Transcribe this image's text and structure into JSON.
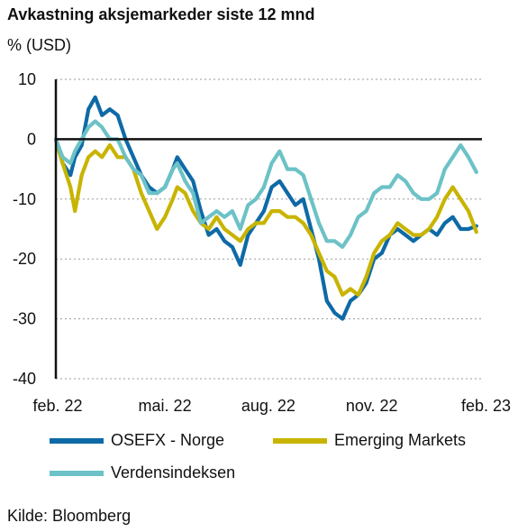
{
  "chart_data": {
    "type": "line",
    "title": "Avkastning aksjemarkeder siste 12 mnd",
    "ylabel": "% (USD)",
    "ylim": [
      -40,
      10
    ],
    "yticks": [
      10,
      0,
      -10,
      -20,
      -30,
      -40
    ],
    "xlim": [
      "2022-02-01",
      "2023-02-15"
    ],
    "xticks": [
      {
        "date": "2022-02-01",
        "label": "feb. 22"
      },
      {
        "date": "2022-05-01",
        "label": "mai. 22"
      },
      {
        "date": "2022-08-01",
        "label": "aug. 22"
      },
      {
        "date": "2022-11-01",
        "label": "nov. 22"
      },
      {
        "date": "2023-02-01",
        "label": "feb. 23"
      }
    ],
    "grid": "horizontal-dotted",
    "legend": "bottom",
    "series": [
      {
        "name": "OSEFX - Norge",
        "color": "#0e6aa6",
        "points": [
          [
            "2022-02-01",
            0
          ],
          [
            "2022-02-07",
            -4
          ],
          [
            "2022-02-14",
            -6
          ],
          [
            "2022-02-18",
            -3
          ],
          [
            "2022-02-24",
            -1
          ],
          [
            "2022-03-02",
            5
          ],
          [
            "2022-03-08",
            7
          ],
          [
            "2022-03-14",
            4
          ],
          [
            "2022-03-21",
            5
          ],
          [
            "2022-03-28",
            4
          ],
          [
            "2022-04-04",
            0
          ],
          [
            "2022-04-11",
            -3
          ],
          [
            "2022-04-18",
            -6
          ],
          [
            "2022-04-25",
            -8
          ],
          [
            "2022-05-02",
            -9
          ],
          [
            "2022-05-09",
            -8
          ],
          [
            "2022-05-16",
            -5
          ],
          [
            "2022-05-20",
            -3
          ],
          [
            "2022-05-27",
            -5
          ],
          [
            "2022-06-03",
            -7
          ],
          [
            "2022-06-10",
            -12
          ],
          [
            "2022-06-17",
            -16
          ],
          [
            "2022-06-24",
            -15
          ],
          [
            "2022-07-01",
            -17
          ],
          [
            "2022-07-08",
            -18
          ],
          [
            "2022-07-15",
            -21
          ],
          [
            "2022-07-22",
            -16
          ],
          [
            "2022-07-29",
            -14
          ],
          [
            "2022-08-05",
            -12
          ],
          [
            "2022-08-12",
            -8
          ],
          [
            "2022-08-19",
            -7
          ],
          [
            "2022-08-26",
            -9
          ],
          [
            "2022-09-02",
            -11
          ],
          [
            "2022-09-09",
            -10
          ],
          [
            "2022-09-16",
            -15
          ],
          [
            "2022-09-23",
            -20
          ],
          [
            "2022-09-30",
            -27
          ],
          [
            "2022-10-07",
            -29
          ],
          [
            "2022-10-14",
            -30
          ],
          [
            "2022-10-21",
            -27
          ],
          [
            "2022-10-28",
            -26
          ],
          [
            "2022-11-04",
            -24
          ],
          [
            "2022-11-11",
            -20
          ],
          [
            "2022-11-18",
            -19
          ],
          [
            "2022-11-25",
            -16
          ],
          [
            "2022-12-02",
            -15
          ],
          [
            "2022-12-09",
            -16
          ],
          [
            "2022-12-16",
            -17
          ],
          [
            "2022-12-23",
            -16
          ],
          [
            "2022-12-30",
            -15
          ],
          [
            "2023-01-06",
            -16
          ],
          [
            "2023-01-13",
            -14
          ],
          [
            "2023-01-20",
            -13
          ],
          [
            "2023-01-27",
            -15
          ],
          [
            "2023-02-03",
            -15
          ],
          [
            "2023-02-10",
            -14.5
          ]
        ]
      },
      {
        "name": "Emerging Markets",
        "color": "#c8b400",
        "points": [
          [
            "2022-02-01",
            0
          ],
          [
            "2022-02-07",
            -4
          ],
          [
            "2022-02-14",
            -8
          ],
          [
            "2022-02-18",
            -12
          ],
          [
            "2022-02-24",
            -6
          ],
          [
            "2022-03-02",
            -3
          ],
          [
            "2022-03-08",
            -2
          ],
          [
            "2022-03-14",
            -3
          ],
          [
            "2022-03-21",
            -1
          ],
          [
            "2022-03-28",
            -3
          ],
          [
            "2022-04-04",
            -3
          ],
          [
            "2022-04-11",
            -5
          ],
          [
            "2022-04-18",
            -9
          ],
          [
            "2022-04-25",
            -12
          ],
          [
            "2022-05-02",
            -15
          ],
          [
            "2022-05-09",
            -13
          ],
          [
            "2022-05-16",
            -10
          ],
          [
            "2022-05-20",
            -8
          ],
          [
            "2022-05-27",
            -9
          ],
          [
            "2022-06-03",
            -12
          ],
          [
            "2022-06-10",
            -14
          ],
          [
            "2022-06-17",
            -15
          ],
          [
            "2022-06-24",
            -13
          ],
          [
            "2022-07-01",
            -15
          ],
          [
            "2022-07-08",
            -16
          ],
          [
            "2022-07-15",
            -17
          ],
          [
            "2022-07-22",
            -15
          ],
          [
            "2022-07-29",
            -14
          ],
          [
            "2022-08-05",
            -14
          ],
          [
            "2022-08-12",
            -12
          ],
          [
            "2022-08-19",
            -12
          ],
          [
            "2022-08-26",
            -13
          ],
          [
            "2022-09-02",
            -13
          ],
          [
            "2022-09-09",
            -14
          ],
          [
            "2022-09-16",
            -16
          ],
          [
            "2022-09-23",
            -19
          ],
          [
            "2022-09-30",
            -22
          ],
          [
            "2022-10-07",
            -23
          ],
          [
            "2022-10-14",
            -26
          ],
          [
            "2022-10-21",
            -25
          ],
          [
            "2022-10-28",
            -26
          ],
          [
            "2022-11-04",
            -23
          ],
          [
            "2022-11-11",
            -19
          ],
          [
            "2022-11-18",
            -17
          ],
          [
            "2022-11-25",
            -16
          ],
          [
            "2022-12-02",
            -14
          ],
          [
            "2022-12-09",
            -15
          ],
          [
            "2022-12-16",
            -16
          ],
          [
            "2022-12-23",
            -16
          ],
          [
            "2022-12-30",
            -15
          ],
          [
            "2023-01-06",
            -13
          ],
          [
            "2023-01-13",
            -10
          ],
          [
            "2023-01-20",
            -8
          ],
          [
            "2023-01-27",
            -10
          ],
          [
            "2023-02-03",
            -12
          ],
          [
            "2023-02-10",
            -15.5
          ]
        ]
      },
      {
        "name": "Verdensindeksen",
        "color": "#6cc2c6",
        "points": [
          [
            "2022-02-01",
            0
          ],
          [
            "2022-02-07",
            -3
          ],
          [
            "2022-02-14",
            -4
          ],
          [
            "2022-02-18",
            -2
          ],
          [
            "2022-02-24",
            0
          ],
          [
            "2022-03-02",
            2
          ],
          [
            "2022-03-08",
            3
          ],
          [
            "2022-03-14",
            2
          ],
          [
            "2022-03-21",
            0
          ],
          [
            "2022-03-28",
            0
          ],
          [
            "2022-04-04",
            -3
          ],
          [
            "2022-04-11",
            -5
          ],
          [
            "2022-04-18",
            -6
          ],
          [
            "2022-04-25",
            -9
          ],
          [
            "2022-05-02",
            -9
          ],
          [
            "2022-05-09",
            -8
          ],
          [
            "2022-05-16",
            -5
          ],
          [
            "2022-05-20",
            -4
          ],
          [
            "2022-05-27",
            -7
          ],
          [
            "2022-06-03",
            -9
          ],
          [
            "2022-06-10",
            -14
          ],
          [
            "2022-06-17",
            -13
          ],
          [
            "2022-06-24",
            -12
          ],
          [
            "2022-07-01",
            -13
          ],
          [
            "2022-07-08",
            -12
          ],
          [
            "2022-07-15",
            -15
          ],
          [
            "2022-07-22",
            -11
          ],
          [
            "2022-07-29",
            -10
          ],
          [
            "2022-08-05",
            -8
          ],
          [
            "2022-08-12",
            -4
          ],
          [
            "2022-08-19",
            -2
          ],
          [
            "2022-08-26",
            -5
          ],
          [
            "2022-09-02",
            -5
          ],
          [
            "2022-09-09",
            -6
          ],
          [
            "2022-09-16",
            -10
          ],
          [
            "2022-09-23",
            -14
          ],
          [
            "2022-09-30",
            -17
          ],
          [
            "2022-10-07",
            -17
          ],
          [
            "2022-10-14",
            -18
          ],
          [
            "2022-10-21",
            -16
          ],
          [
            "2022-10-28",
            -13
          ],
          [
            "2022-11-04",
            -12
          ],
          [
            "2022-11-11",
            -9
          ],
          [
            "2022-11-18",
            -8
          ],
          [
            "2022-11-25",
            -8
          ],
          [
            "2022-12-02",
            -6
          ],
          [
            "2022-12-09",
            -7
          ],
          [
            "2022-12-16",
            -9
          ],
          [
            "2022-12-23",
            -10
          ],
          [
            "2022-12-30",
            -10
          ],
          [
            "2023-01-06",
            -9
          ],
          [
            "2023-01-13",
            -5
          ],
          [
            "2023-01-20",
            -3
          ],
          [
            "2023-01-27",
            -1
          ],
          [
            "2023-02-03",
            -3
          ],
          [
            "2023-02-10",
            -5.5
          ]
        ]
      }
    ]
  },
  "source": "Kilde: Bloomberg"
}
